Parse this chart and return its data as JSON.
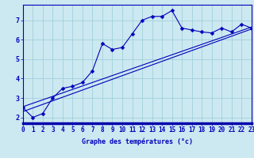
{
  "xlabel": "Graphe des températures (°c)",
  "bg_color": "#cce8f0",
  "line_color": "#0000bb",
  "grid_color": "#99ccd9",
  "x_data": [
    0,
    1,
    2,
    3,
    4,
    5,
    6,
    7,
    8,
    9,
    10,
    11,
    12,
    13,
    14,
    15,
    16,
    17,
    18,
    19,
    20,
    21,
    22,
    23
  ],
  "y_data": [
    2.5,
    2.0,
    2.2,
    3.0,
    3.5,
    3.6,
    3.8,
    4.4,
    5.8,
    5.5,
    5.6,
    6.3,
    7.0,
    7.2,
    7.2,
    7.5,
    6.6,
    6.5,
    6.4,
    6.35,
    6.6,
    6.4,
    6.8,
    6.6
  ],
  "reg_line1_y": [
    2.3,
    6.55
  ],
  "reg_line2_y": [
    2.55,
    6.65
  ],
  "ylim": [
    1.7,
    7.8
  ],
  "xlim": [
    0,
    23
  ],
  "yticks": [
    2,
    3,
    4,
    5,
    6,
    7
  ],
  "xticks": [
    0,
    1,
    2,
    3,
    4,
    5,
    6,
    7,
    8,
    9,
    10,
    11,
    12,
    13,
    14,
    15,
    16,
    17,
    18,
    19,
    20,
    21,
    22,
    23
  ],
  "tick_fontsize": 5.5,
  "xlabel_fontsize": 6.0,
  "marker_size": 2.5,
  "line_width": 0.8,
  "spine_color": "#0000bb",
  "bottom_bar_color": "#0000aa"
}
